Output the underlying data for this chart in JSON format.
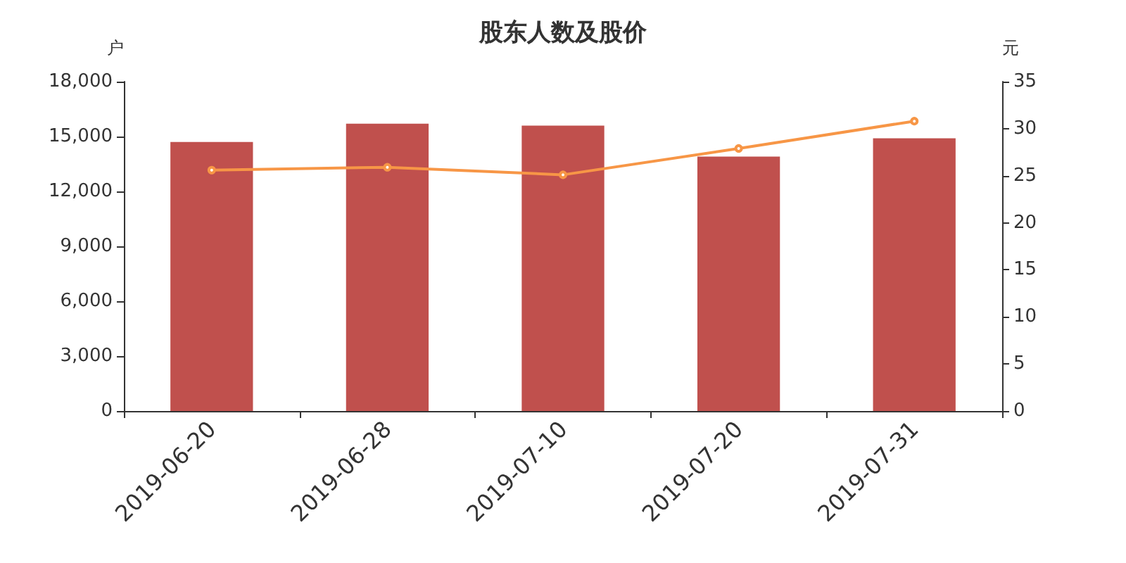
{
  "chart_data": {
    "type": "bar",
    "title": "股东人数及股价",
    "ylabel": "户",
    "y2label": "元",
    "categories": [
      "2019-06-20",
      "2019-06-28",
      "2019-07-10",
      "2019-07-20",
      "2019-07-31"
    ],
    "series": [
      {
        "color": "#c0504d",
        "values": [
          14700,
          15700,
          15600,
          13900,
          14900
        ]
      },
      {
        "type": "line",
        "axis": "y2",
        "color": "#f79646",
        "values": [
          25.6,
          25.9,
          25.1,
          27.9,
          30.8
        ]
      }
    ],
    "ylim": [
      0,
      18000
    ],
    "yticks": [
      {
        "value": 0,
        "label": "0"
      },
      {
        "value": 3000,
        "label": "3,000"
      },
      {
        "value": 6000,
        "label": "6,000"
      },
      {
        "value": 9000,
        "label": "9,000"
      },
      {
        "value": 12000,
        "label": "12,000"
      },
      {
        "value": 15000,
        "label": "15,000"
      },
      {
        "value": 18000,
        "label": "18,000"
      }
    ],
    "y2lim": [
      0,
      35
    ],
    "y2ticks": [
      0,
      5,
      10,
      15,
      20,
      25,
      30,
      35
    ],
    "grid": false,
    "marker": "circle"
  }
}
